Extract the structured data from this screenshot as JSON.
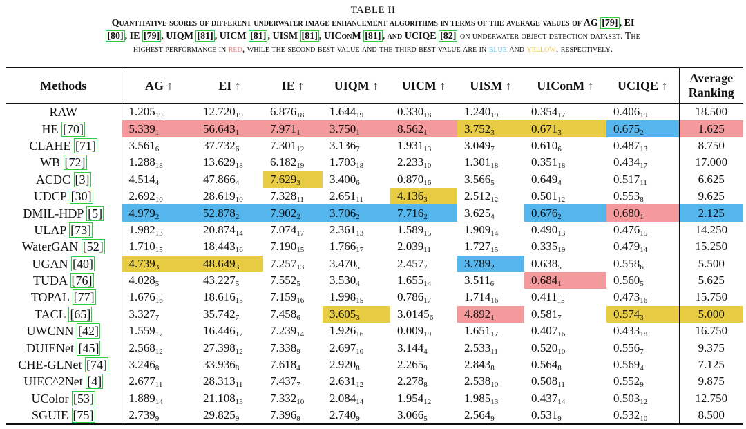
{
  "caption": {
    "title": "TABLE II",
    "line1": {
      "pre": "Quantitative scores of different underwater image enhancement algorithms in terms of the average values of AG ",
      "r_ag": "[79]",
      "t_ei": ", EI",
      "r_ei": "[80]",
      "t_ie": ", IE ",
      "r_ie": "[79]",
      "t_uiqm": ", UIQM ",
      "r_uiqm": "[81]",
      "t_uicm": ", UICM ",
      "r_uicm": "[81]",
      "t_uism": ", UISM ",
      "r_uism": "[81]",
      "t_uiconm": ", UIConM ",
      "r_uiconm": "[81]",
      "t_uciqe": ", and UCIQE ",
      "r_uciqe": "[82]",
      "post": " on underwater object detection dataset. The"
    },
    "line2": {
      "pre": "highest performance in ",
      "red": "red",
      "mid": ", while the second best value and the third best value are in ",
      "blue": "blue",
      "and": " and ",
      "yellow": "yellow",
      "post": ", respectively."
    }
  },
  "header": {
    "methods": "Methods",
    "ag": "AG ↑",
    "ei": "EI ↑",
    "ie": "IE ↑",
    "uiqm": "UIQM ↑",
    "uicm": "UICM ↑",
    "uism": "UISM ↑",
    "uiconm": "UIConM ↑",
    "uciqe": "UCIQE ↑",
    "ranking_l1": "Average",
    "ranking_l2": "Ranking"
  },
  "colors": {
    "red": "#f49a9c",
    "blue": "#55b6ee",
    "yellow": "#e8cd44",
    "citation_box": "#2ecc40"
  },
  "rows": [
    {
      "name": "RAW",
      "ref": "",
      "cells": [
        [
          "1.205",
          "19",
          ""
        ],
        [
          "12.720",
          "19",
          ""
        ],
        [
          "6.876",
          "18",
          ""
        ],
        [
          "1.644",
          "19",
          ""
        ],
        [
          "0.330",
          "18",
          ""
        ],
        [
          "1.240",
          "19",
          ""
        ],
        [
          "0.354",
          "17",
          ""
        ],
        [
          "0.406",
          "19",
          ""
        ]
      ],
      "rank": "18.500",
      "rank_c": ""
    },
    {
      "name": "HE ",
      "ref": "[70]",
      "cells": [
        [
          "5.339",
          "1",
          "c1"
        ],
        [
          "56.643",
          "1",
          "c1"
        ],
        [
          "7.971",
          "1",
          "c1"
        ],
        [
          "3.750",
          "1",
          "c1"
        ],
        [
          "8.562",
          "1",
          "c1"
        ],
        [
          "3.752",
          "3",
          "c3"
        ],
        [
          "0.671",
          "3",
          "c3"
        ],
        [
          "0.675",
          "2",
          "c2"
        ]
      ],
      "rank": "1.625",
      "rank_c": "c1"
    },
    {
      "name": "CLAHE ",
      "ref": "[71]",
      "cells": [
        [
          "3.561",
          "6",
          ""
        ],
        [
          "37.732",
          "6",
          ""
        ],
        [
          "7.301",
          "12",
          ""
        ],
        [
          "3.136",
          "7",
          ""
        ],
        [
          "1.931",
          "13",
          ""
        ],
        [
          "3.049",
          "7",
          ""
        ],
        [
          "0.610",
          "6",
          ""
        ],
        [
          "0.487",
          "13",
          ""
        ]
      ],
      "rank": "8.750",
      "rank_c": ""
    },
    {
      "name": "WB ",
      "ref": "[72]",
      "cells": [
        [
          "1.288",
          "18",
          ""
        ],
        [
          "13.629",
          "18",
          ""
        ],
        [
          "6.182",
          "19",
          ""
        ],
        [
          "1.703",
          "18",
          ""
        ],
        [
          "2.233",
          "10",
          ""
        ],
        [
          "1.301",
          "18",
          ""
        ],
        [
          "0.351",
          "18",
          ""
        ],
        [
          "0.434",
          "17",
          ""
        ]
      ],
      "rank": "17.000",
      "rank_c": ""
    },
    {
      "name": "ACDC ",
      "ref": "[3]",
      "cells": [
        [
          "4.514",
          "4",
          ""
        ],
        [
          "47.866",
          "4",
          ""
        ],
        [
          "7.629",
          "3",
          "c3"
        ],
        [
          "3.400",
          "6",
          ""
        ],
        [
          "0.870",
          "16",
          ""
        ],
        [
          "3.566",
          "5",
          ""
        ],
        [
          "0.649",
          "4",
          ""
        ],
        [
          "0.517",
          "11",
          ""
        ]
      ],
      "rank": "6.625",
      "rank_c": ""
    },
    {
      "name": "UDCP ",
      "ref": "[30]",
      "cells": [
        [
          "2.692",
          "10",
          ""
        ],
        [
          "28.619",
          "10",
          ""
        ],
        [
          "7.328",
          "11",
          ""
        ],
        [
          "2.651",
          "11",
          ""
        ],
        [
          "4.136",
          "3",
          "c3"
        ],
        [
          "2.512",
          "12",
          ""
        ],
        [
          "0.501",
          "12",
          ""
        ],
        [
          "0.553",
          "8",
          ""
        ]
      ],
      "rank": "9.625",
      "rank_c": ""
    },
    {
      "name": "DMIL-HDP ",
      "ref": "[5]",
      "cells": [
        [
          "4.979",
          "2",
          "c2"
        ],
        [
          "52.878",
          "2",
          "c2"
        ],
        [
          "7.902",
          "2",
          "c2"
        ],
        [
          "3.706",
          "2",
          "c2"
        ],
        [
          "7.716",
          "2",
          "c2"
        ],
        [
          "3.625",
          "4",
          ""
        ],
        [
          "0.676",
          "2",
          "c2"
        ],
        [
          "0.680",
          "1",
          "c1"
        ]
      ],
      "rank": "2.125",
      "rank_c": "c2"
    },
    {
      "name": "ULAP ",
      "ref": "[73]",
      "cells": [
        [
          "1.982",
          "13",
          ""
        ],
        [
          "20.874",
          "14",
          ""
        ],
        [
          "7.074",
          "17",
          ""
        ],
        [
          "2.361",
          "13",
          ""
        ],
        [
          "1.589",
          "15",
          ""
        ],
        [
          "1.909",
          "14",
          ""
        ],
        [
          "0.490",
          "13",
          ""
        ],
        [
          "0.476",
          "15",
          ""
        ]
      ],
      "rank": "14.250",
      "rank_c": ""
    },
    {
      "name": "WaterGAN ",
      "ref": "[52]",
      "cells": [
        [
          "1.710",
          "15",
          ""
        ],
        [
          "18.443",
          "16",
          ""
        ],
        [
          "7.190",
          "15",
          ""
        ],
        [
          "1.766",
          "17",
          ""
        ],
        [
          "2.039",
          "11",
          ""
        ],
        [
          "1.727",
          "15",
          ""
        ],
        [
          "0.335",
          "19",
          ""
        ],
        [
          "0.479",
          "14",
          ""
        ]
      ],
      "rank": "15.250",
      "rank_c": ""
    },
    {
      "name": "UGAN ",
      "ref": "[40]",
      "cells": [
        [
          "4.739",
          "3",
          "c3"
        ],
        [
          "48.649",
          "3",
          "c3"
        ],
        [
          "7.257",
          "13",
          ""
        ],
        [
          "3.470",
          "5",
          ""
        ],
        [
          "2.457",
          "7",
          ""
        ],
        [
          "3.789",
          "2",
          "c2"
        ],
        [
          "0.638",
          "5",
          ""
        ],
        [
          "0.558",
          "6",
          ""
        ]
      ],
      "rank": "5.500",
      "rank_c": ""
    },
    {
      "name": "TUDA ",
      "ref": "[76]",
      "cells": [
        [
          "4.028",
          "5",
          ""
        ],
        [
          "43.227",
          "5",
          ""
        ],
        [
          "7.552",
          "5",
          ""
        ],
        [
          "3.530",
          "4",
          ""
        ],
        [
          "1.655",
          "14",
          ""
        ],
        [
          "3.511",
          "6",
          ""
        ],
        [
          "0.684",
          "1",
          "c1"
        ],
        [
          "0.560",
          "5",
          ""
        ]
      ],
      "rank": "5.625",
      "rank_c": ""
    },
    {
      "name": "TOPAL ",
      "ref": "[77]",
      "cells": [
        [
          "1.676",
          "16",
          ""
        ],
        [
          "18.616",
          "15",
          ""
        ],
        [
          "7.159",
          "16",
          ""
        ],
        [
          "1.998",
          "15",
          ""
        ],
        [
          "0.786",
          "17",
          ""
        ],
        [
          "1.714",
          "16",
          ""
        ],
        [
          "0.411",
          "15",
          ""
        ],
        [
          "0.473",
          "16",
          ""
        ]
      ],
      "rank": "15.750",
      "rank_c": ""
    },
    {
      "name": "TACL ",
      "ref": "[65]",
      "cells": [
        [
          "3.327",
          "7",
          ""
        ],
        [
          "35.742",
          "7",
          ""
        ],
        [
          "7.458",
          "6",
          ""
        ],
        [
          "3.605",
          "3",
          "c3"
        ],
        [
          "3.0145",
          "6",
          ""
        ],
        [
          "4.892",
          "1",
          "c1"
        ],
        [
          "0.581",
          "7",
          ""
        ],
        [
          "0.574",
          "3",
          "c3"
        ]
      ],
      "rank": "5.000",
      "rank_c": "c3"
    },
    {
      "name": "UWCNN ",
      "ref": "[42]",
      "cells": [
        [
          "1.559",
          "17",
          ""
        ],
        [
          "16.446",
          "17",
          ""
        ],
        [
          "7.239",
          "14",
          ""
        ],
        [
          "1.926",
          "16",
          ""
        ],
        [
          "0.009",
          "19",
          ""
        ],
        [
          "1.651",
          "17",
          ""
        ],
        [
          "0.407",
          "16",
          ""
        ],
        [
          "0.433",
          "18",
          ""
        ]
      ],
      "rank": "16.750",
      "rank_c": ""
    },
    {
      "name": "DUIENet ",
      "ref": "[45]",
      "cells": [
        [
          "2.568",
          "12",
          ""
        ],
        [
          "27.398",
          "12",
          ""
        ],
        [
          "7.338",
          "9",
          ""
        ],
        [
          "2.697",
          "10",
          ""
        ],
        [
          "3.144",
          "4",
          ""
        ],
        [
          "2.533",
          "11",
          ""
        ],
        [
          "0.520",
          "10",
          ""
        ],
        [
          "0.556",
          "7",
          ""
        ]
      ],
      "rank": "9.375",
      "rank_c": ""
    },
    {
      "name": "CHE-GLNet ",
      "ref": "[74]",
      "cells": [
        [
          "3.246",
          "8",
          ""
        ],
        [
          "33.936",
          "8",
          ""
        ],
        [
          "7.618",
          "4",
          ""
        ],
        [
          "2.920",
          "8",
          ""
        ],
        [
          "2.265",
          "9",
          ""
        ],
        [
          "2.843",
          "8",
          ""
        ],
        [
          "0.564",
          "8",
          ""
        ],
        [
          "0.569",
          "4",
          ""
        ]
      ],
      "rank": "7.125",
      "rank_c": ""
    },
    {
      "name": "UIEC^2Net ",
      "ref": "[4]",
      "cells": [
        [
          "2.677",
          "11",
          ""
        ],
        [
          "28.313",
          "11",
          ""
        ],
        [
          "7.437",
          "7",
          ""
        ],
        [
          "2.631",
          "12",
          ""
        ],
        [
          "2.278",
          "8",
          ""
        ],
        [
          "2.538",
          "10",
          ""
        ],
        [
          "0.508",
          "11",
          ""
        ],
        [
          "0.552",
          "9",
          ""
        ]
      ],
      "rank": "9.875",
      "rank_c": ""
    },
    {
      "name": "UColor ",
      "ref": "[53]",
      "cells": [
        [
          "1.889",
          "14",
          ""
        ],
        [
          "21.108",
          "13",
          ""
        ],
        [
          "7.332",
          "10",
          ""
        ],
        [
          "2.084",
          "14",
          ""
        ],
        [
          "1.954",
          "12",
          ""
        ],
        [
          "1.985",
          "13",
          ""
        ],
        [
          "0.437",
          "14",
          ""
        ],
        [
          "0.503",
          "12",
          ""
        ]
      ],
      "rank": "12.750",
      "rank_c": ""
    },
    {
      "name": "SGUIE ",
      "ref": "[75]",
      "cells": [
        [
          "2.739",
          "9",
          ""
        ],
        [
          "29.825",
          "9",
          ""
        ],
        [
          "7.396",
          "8",
          ""
        ],
        [
          "2.740",
          "9",
          ""
        ],
        [
          "3.066",
          "5",
          ""
        ],
        [
          "2.564",
          "9",
          ""
        ],
        [
          "0.531",
          "9",
          ""
        ],
        [
          "0.532",
          "10",
          ""
        ]
      ],
      "rank": "8.500",
      "rank_c": ""
    }
  ]
}
